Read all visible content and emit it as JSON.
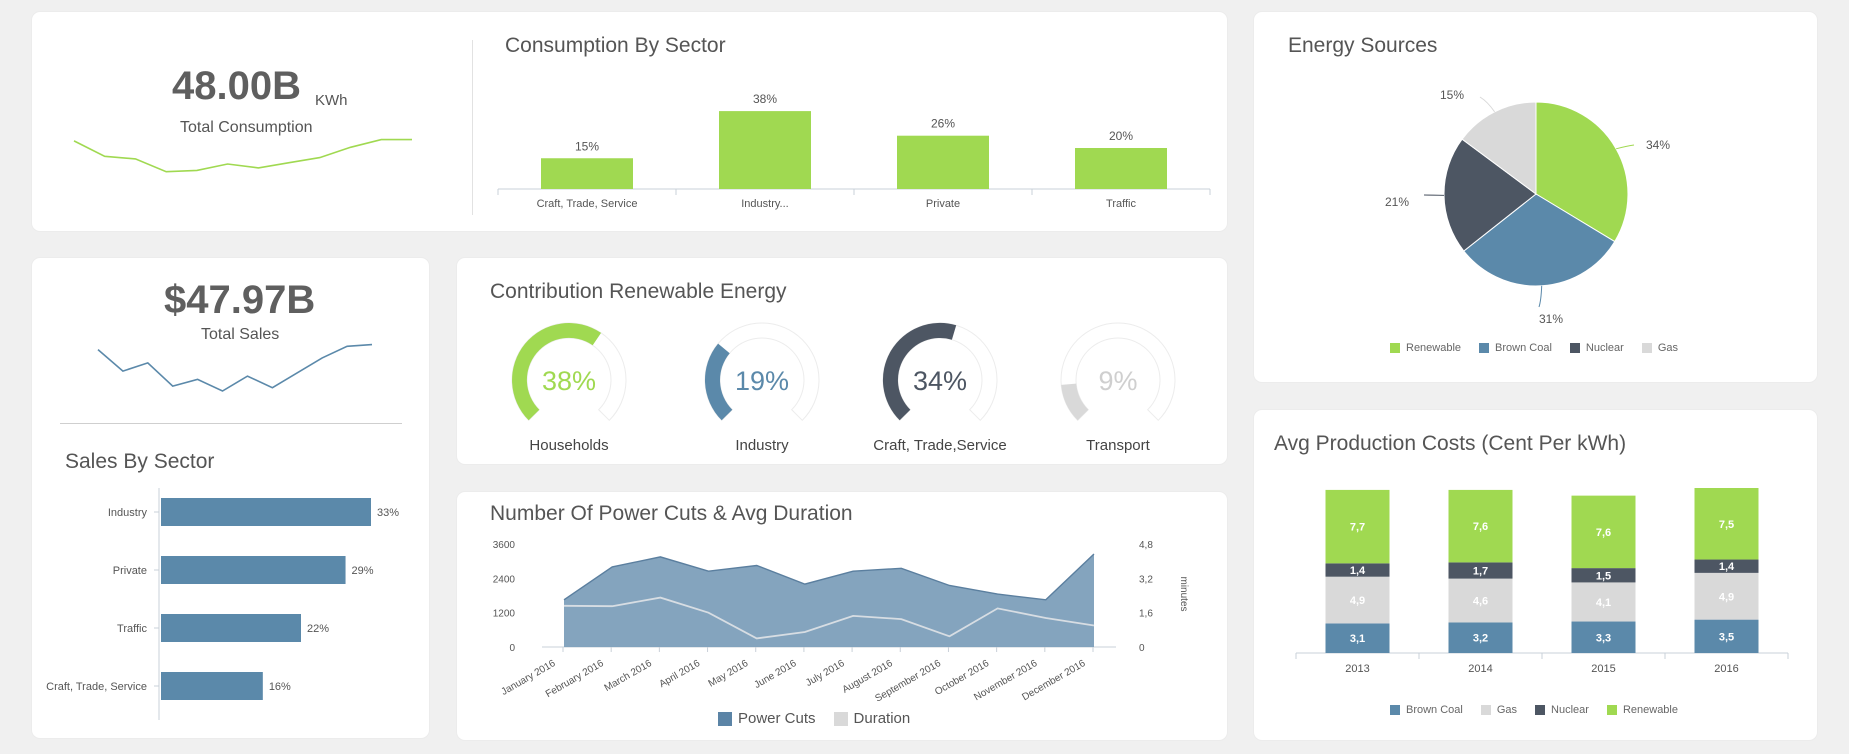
{
  "colors": {
    "green": "#a0d951",
    "blue": "#5b89aa",
    "dark": "#4d5663",
    "gray": "#d9d9d9"
  },
  "total_consumption": {
    "value": "48.00B",
    "unit": "KWh",
    "label": "Total Consumption",
    "trend": [
      62,
      50,
      48,
      38,
      39,
      44,
      41,
      45,
      49,
      57,
      63,
      63
    ]
  },
  "total_sales": {
    "value": "$47.97B",
    "label": "Total Sales",
    "trend": [
      58,
      45,
      50,
      36,
      40,
      33,
      42,
      35,
      44,
      53,
      60,
      61
    ]
  },
  "consumption_by_sector": {
    "title": "Consumption By Sector",
    "chart_data": {
      "type": "bar",
      "categories": [
        "Craft, Trade, Service",
        "Industry...",
        "Private",
        "Traffic"
      ],
      "values": [
        15,
        38,
        26,
        20
      ],
      "value_labels": [
        "15%",
        "38%",
        "26%",
        "20%"
      ],
      "ylim": [
        0,
        40
      ]
    }
  },
  "energy_sources": {
    "title": "Energy Sources",
    "chart_data": {
      "type": "pie",
      "labels": [
        "Renewable",
        "Brown Coal",
        "Nuclear",
        "Gas"
      ],
      "values": [
        34,
        31,
        21,
        15
      ],
      "value_labels": [
        "34%",
        "31%",
        "21%",
        "15%"
      ],
      "legend": "bottom"
    }
  },
  "sales_by_sector": {
    "title": "Sales By Sector",
    "chart_data": {
      "type": "bar",
      "orientation": "horizontal",
      "categories": [
        "Industry",
        "Private",
        "Traffic",
        "Craft, Trade, Service"
      ],
      "values": [
        33,
        29,
        22,
        16
      ],
      "value_labels": [
        "33%",
        "29%",
        "22%",
        "16%"
      ],
      "xlim": [
        0,
        33
      ]
    }
  },
  "renewable_contribution": {
    "title": "Contribution Renewable Energy",
    "gauges": [
      {
        "label": "Households",
        "value": 38,
        "display": "38%",
        "color": "#a0d951"
      },
      {
        "label": "Industry",
        "value": 19,
        "display": "19%",
        "color": "#5b89aa"
      },
      {
        "label": "Craft, Trade,Service",
        "value": 34,
        "display": "34%",
        "color": "#4d5663"
      },
      {
        "label": "Transport",
        "value": 9,
        "display": "9%",
        "color": "#d9d9d9"
      }
    ]
  },
  "power_cuts": {
    "title": "Number Of Power Cuts & Avg Duration",
    "chart_data": {
      "type": "area",
      "categories": [
        "January 2016",
        "February 2016",
        "March 2016",
        "April 2016",
        "May 2016",
        "June 2016",
        "July 2016",
        "August 2016",
        "September 2016",
        "October 2016",
        "November 2016",
        "December 2016"
      ],
      "series": [
        {
          "name": "Power Cuts",
          "axis": "left",
          "values": [
            1650,
            2800,
            3150,
            2650,
            2850,
            2200,
            2650,
            2750,
            2150,
            1850,
            1650,
            3250
          ]
        },
        {
          "name": "Duration",
          "axis": "right",
          "values": [
            1.92,
            1.9,
            2.3,
            1.6,
            0.4,
            0.7,
            1.45,
            1.3,
            0.5,
            1.8,
            1.35,
            1.0
          ]
        }
      ],
      "ylim_left": [
        0,
        3600
      ],
      "ylim_right": [
        0,
        4.8
      ],
      "yticks_left": [
        "0",
        "1200",
        "2400",
        "3600"
      ],
      "yticks_right": [
        "0",
        "1,6",
        "3,2",
        "4,8"
      ],
      "ylabel_right": "minutes",
      "legend": "bottom"
    }
  },
  "production_costs": {
    "title": "Avg Production Costs (Cent Per kWh)",
    "chart_data": {
      "type": "bar",
      "stacked": true,
      "categories": [
        "2013",
        "2014",
        "2015",
        "2016"
      ],
      "series": [
        {
          "name": "Brown Coal",
          "values": [
            3.1,
            3.2,
            3.3,
            3.5
          ],
          "labels": [
            "3,1",
            "3,2",
            "3,3",
            "3,5"
          ]
        },
        {
          "name": "Gas",
          "values": [
            4.9,
            4.6,
            4.1,
            4.9
          ],
          "labels": [
            "4,9",
            "4,6",
            "4,1",
            "4,9"
          ]
        },
        {
          "name": "Nuclear",
          "values": [
            1.4,
            1.7,
            1.5,
            1.4
          ],
          "labels": [
            "1,4",
            "1,7",
            "1,5",
            "1,4"
          ]
        },
        {
          "name": "Renewable",
          "values": [
            7.7,
            7.6,
            7.6,
            7.5
          ],
          "labels": [
            "7,7",
            "7,6",
            "7,6",
            "7,5"
          ]
        }
      ],
      "legend": "bottom"
    }
  }
}
